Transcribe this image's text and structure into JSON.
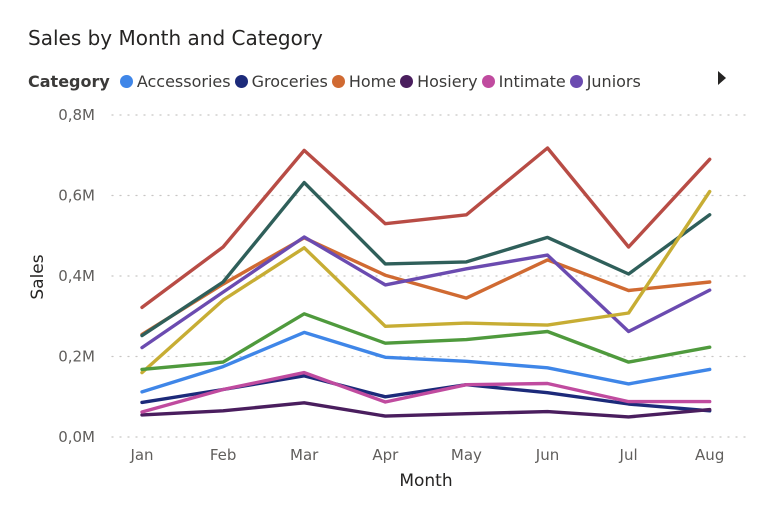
{
  "chart_data": {
    "type": "line",
    "title": "Sales by Month and Category",
    "xlabel": "Month",
    "ylabel": "Sales",
    "ylim": [
      0,
      800000
    ],
    "y_ticks": [
      {
        "value": 0,
        "label": "0,0M"
      },
      {
        "value": 200000,
        "label": "0,2M"
      },
      {
        "value": 400000,
        "label": "0,4M"
      },
      {
        "value": 600000,
        "label": "0,6M"
      },
      {
        "value": 800000,
        "label": "0,8M"
      }
    ],
    "grid": true,
    "legend": {
      "title": "Category",
      "position": "top-left",
      "entries": [
        "Accessories",
        "Groceries",
        "Home",
        "Hosiery",
        "Intimate",
        "Juniors"
      ]
    },
    "categories": [
      "Jan",
      "Feb",
      "Mar",
      "Apr",
      "May",
      "Jun",
      "Jul",
      "Aug"
    ],
    "series": [
      {
        "name": "Accessories",
        "color": "#3f86e8",
        "values": [
          112000,
          175000,
          260000,
          198000,
          188000,
          172000,
          132000,
          168000
        ]
      },
      {
        "name": "Groceries",
        "color": "#1c2a7a",
        "values": [
          86000,
          118000,
          152000,
          100000,
          130000,
          110000,
          82000,
          65000
        ]
      },
      {
        "name": "Home",
        "color": "#d06a32",
        "values": [
          255000,
          380000,
          495000,
          402000,
          345000,
          440000,
          364000,
          385000
        ]
      },
      {
        "name": "Hosiery",
        "color": "#4a1e5e",
        "values": [
          55000,
          65000,
          85000,
          52000,
          58000,
          63000,
          50000,
          68000
        ]
      },
      {
        "name": "Intimate",
        "color": "#c04b9f",
        "values": [
          62000,
          118000,
          160000,
          87000,
          130000,
          133000,
          88000,
          88000
        ]
      },
      {
        "name": "Juniors",
        "color": "#6b4bb0",
        "values": [
          222000,
          360000,
          497000,
          378000,
          418000,
          452000,
          262000,
          365000
        ]
      },
      {
        "color": "#b84c45",
        "values": [
          322000,
          472000,
          712000,
          530000,
          552000,
          718000,
          472000,
          690000
        ]
      },
      {
        "color": "#2f5f5a",
        "values": [
          252000,
          385000,
          632000,
          430000,
          435000,
          496000,
          405000,
          552000
        ]
      },
      {
        "color": "#c7ad34",
        "values": [
          160000,
          340000,
          470000,
          275000,
          283000,
          278000,
          308000,
          610000
        ]
      },
      {
        "color": "#4f9a3d",
        "values": [
          168000,
          186000,
          306000,
          233000,
          242000,
          262000,
          186000,
          223000
        ]
      }
    ]
  }
}
